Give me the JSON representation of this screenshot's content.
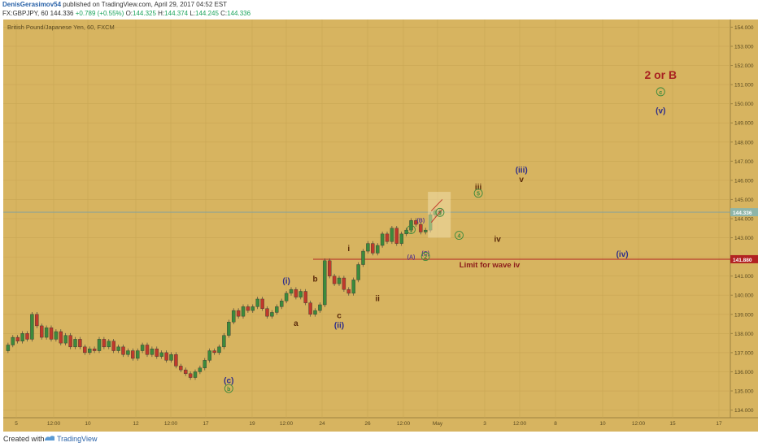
{
  "header": {
    "author": "DenisGerasimov54",
    "published": "published on TradingView.com, April 29, 2017 04:52 EST",
    "symbol": "FX:GBPJPY, 60",
    "last": "144.336",
    "change": "+0.789 (+0.55%)",
    "o_label": "O:",
    "o_value": "144.325",
    "h_label": "H:",
    "h_value": "144.374",
    "l_label": "L:",
    "l_value": "144.245",
    "c_label": "C:",
    "c_value": "144.336"
  },
  "footer": {
    "created_with": "Created with",
    "brand": "TradingView"
  },
  "colors": {
    "background": "#d7b460",
    "up": "#3c8a3c",
    "down": "#c0392b",
    "grid": "#c9a654",
    "limit_line": "#b22222",
    "wave_blue": "#2c2c8a",
    "wave_brown": "#5a2a0a",
    "circle": "#3c8a3c",
    "last_price_line": "#7fa0a0"
  },
  "chart_data": {
    "type": "candlestick",
    "title": "British Pound/Japanese Yen, 60, FXCM",
    "ylim": [
      133.6,
      154.4
    ],
    "y_ticks": [
      "154.000",
      "153.000",
      "152.000",
      "151.000",
      "150.000",
      "149.000",
      "148.000",
      "147.000",
      "146.000",
      "145.000",
      "144.000",
      "143.000",
      "142.000",
      "141.000",
      "140.000",
      "139.000",
      "138.000",
      "137.000",
      "136.000",
      "135.000",
      "134.000"
    ],
    "x_ticks": [
      "5",
      "12:00",
      "10",
      "12",
      "12:00",
      "17",
      "19",
      "12:00",
      "24",
      "26",
      "12:00",
      "May",
      "3",
      "12:00",
      "8",
      "10",
      "12:00",
      "15",
      "17"
    ],
    "price_path": [
      [
        0,
        137.1
      ],
      [
        1,
        137.4
      ],
      [
        2,
        137.8
      ],
      [
        3,
        137.6
      ],
      [
        4,
        138.0
      ],
      [
        5,
        137.7
      ],
      [
        6,
        139.0
      ],
      [
        7,
        138.4
      ],
      [
        8,
        137.8
      ],
      [
        9,
        138.3
      ],
      [
        10,
        137.7
      ],
      [
        11,
        138.1
      ],
      [
        12,
        137.5
      ],
      [
        13,
        137.9
      ],
      [
        14,
        137.3
      ],
      [
        15,
        137.7
      ],
      [
        16,
        137.3
      ],
      [
        17,
        137.0
      ],
      [
        18,
        137.2
      ],
      [
        19,
        137.1
      ],
      [
        20,
        137.7
      ],
      [
        21,
        137.3
      ],
      [
        22,
        137.6
      ],
      [
        23,
        137.1
      ],
      [
        24,
        137.3
      ],
      [
        25,
        136.9
      ],
      [
        26,
        137.1
      ],
      [
        27,
        136.7
      ],
      [
        28,
        137.1
      ],
      [
        29,
        137.4
      ],
      [
        30,
        136.9
      ],
      [
        31,
        137.2
      ],
      [
        32,
        136.8
      ],
      [
        33,
        137.0
      ],
      [
        34,
        136.6
      ],
      [
        35,
        136.9
      ],
      [
        36,
        136.3
      ],
      [
        37,
        136.1
      ],
      [
        38,
        135.9
      ],
      [
        39,
        135.7
      ],
      [
        40,
        136.0
      ],
      [
        41,
        136.2
      ],
      [
        42,
        136.6
      ],
      [
        43,
        137.1
      ],
      [
        44,
        137.0
      ],
      [
        45,
        137.3
      ],
      [
        46,
        137.9
      ],
      [
        47,
        138.6
      ],
      [
        48,
        139.2
      ],
      [
        49,
        138.9
      ],
      [
        50,
        139.4
      ],
      [
        51,
        139.2
      ],
      [
        52,
        139.4
      ],
      [
        53,
        139.8
      ],
      [
        54,
        139.3
      ],
      [
        55,
        138.9
      ],
      [
        56,
        139.1
      ],
      [
        57,
        139.4
      ],
      [
        58,
        139.7
      ],
      [
        59,
        140.1
      ],
      [
        60,
        140.3
      ],
      [
        61,
        139.9
      ],
      [
        62,
        140.2
      ],
      [
        63,
        139.6
      ],
      [
        64,
        139.0
      ],
      [
        65,
        139.2
      ],
      [
        66,
        139.5
      ],
      [
        67,
        141.8
      ],
      [
        68,
        141.0
      ],
      [
        69,
        140.6
      ],
      [
        70,
        140.9
      ],
      [
        71,
        140.3
      ],
      [
        72,
        140.1
      ],
      [
        73,
        140.8
      ],
      [
        74,
        141.6
      ],
      [
        75,
        142.3
      ],
      [
        76,
        142.7
      ],
      [
        77,
        142.2
      ],
      [
        78,
        142.6
      ],
      [
        79,
        143.2
      ],
      [
        80,
        142.8
      ],
      [
        81,
        143.5
      ],
      [
        82,
        142.7
      ],
      [
        83,
        143.2
      ],
      [
        84,
        143.4
      ],
      [
        85,
        143.9
      ],
      [
        86,
        143.7
      ],
      [
        87,
        143.3
      ],
      [
        88,
        143.4
      ],
      [
        89,
        144.2
      ],
      [
        90,
        144.4
      ],
      [
        91,
        144.3
      ]
    ],
    "last_price": 144.336,
    "limit_price": 141.88,
    "limit_label": "Limit for wave iv",
    "last_price_label": "144.336",
    "limit_price_label": "141.880",
    "annotations": [
      {
        "text": "(i)",
        "x": 59,
        "y": 140.6,
        "style": "blue"
      },
      {
        "text": "a",
        "x": 61,
        "y": 138.4,
        "style": "brown"
      },
      {
        "text": "b",
        "x": 65,
        "y": 140.7,
        "style": "brown"
      },
      {
        "text": "c",
        "x": 70,
        "y": 138.8,
        "style": "brown"
      },
      {
        "text": "(ii)",
        "x": 70,
        "y": 138.3,
        "style": "blue"
      },
      {
        "text": "i",
        "x": 72,
        "y": 142.3,
        "style": "brown"
      },
      {
        "text": "ii",
        "x": 78,
        "y": 139.7,
        "style": "brown"
      },
      {
        "text": "(B)",
        "x": 87,
        "y": 143.8,
        "style": "purple"
      },
      {
        "text": "(A)",
        "x": 85,
        "y": 141.9,
        "style": "purple"
      },
      {
        "text": "(C)",
        "x": 88,
        "y": 142.1,
        "style": "purple"
      },
      {
        "text": "iii",
        "x": 99,
        "y": 145.5,
        "style": "brown"
      },
      {
        "text": "iv",
        "x": 103,
        "y": 142.8,
        "style": "brown"
      },
      {
        "text": "(iii)",
        "x": 108,
        "y": 146.4,
        "style": "blue"
      },
      {
        "text": "v",
        "x": 108,
        "y": 145.9,
        "style": "brown"
      },
      {
        "text": "(iv)",
        "x": 129,
        "y": 142.0,
        "style": "blue"
      },
      {
        "text": "(v)",
        "x": 137,
        "y": 149.5,
        "style": "blue"
      },
      {
        "text": "(c)",
        "x": 47,
        "y": 135.4,
        "style": "blue"
      },
      {
        "text": "2 or B",
        "x": 137,
        "y": 151.3,
        "style": "red"
      }
    ],
    "circled_labels": [
      {
        "text": "b",
        "x": 47,
        "y": 135.0
      },
      {
        "text": "1",
        "x": 85,
        "y": 143.3
      },
      {
        "text": "2",
        "x": 88,
        "y": 141.9
      },
      {
        "text": "3",
        "x": 91,
        "y": 144.2
      },
      {
        "text": "4",
        "x": 95,
        "y": 143.0
      },
      {
        "text": "5",
        "x": 99,
        "y": 145.2
      },
      {
        "text": "c",
        "x": 137,
        "y": 150.5
      }
    ]
  }
}
